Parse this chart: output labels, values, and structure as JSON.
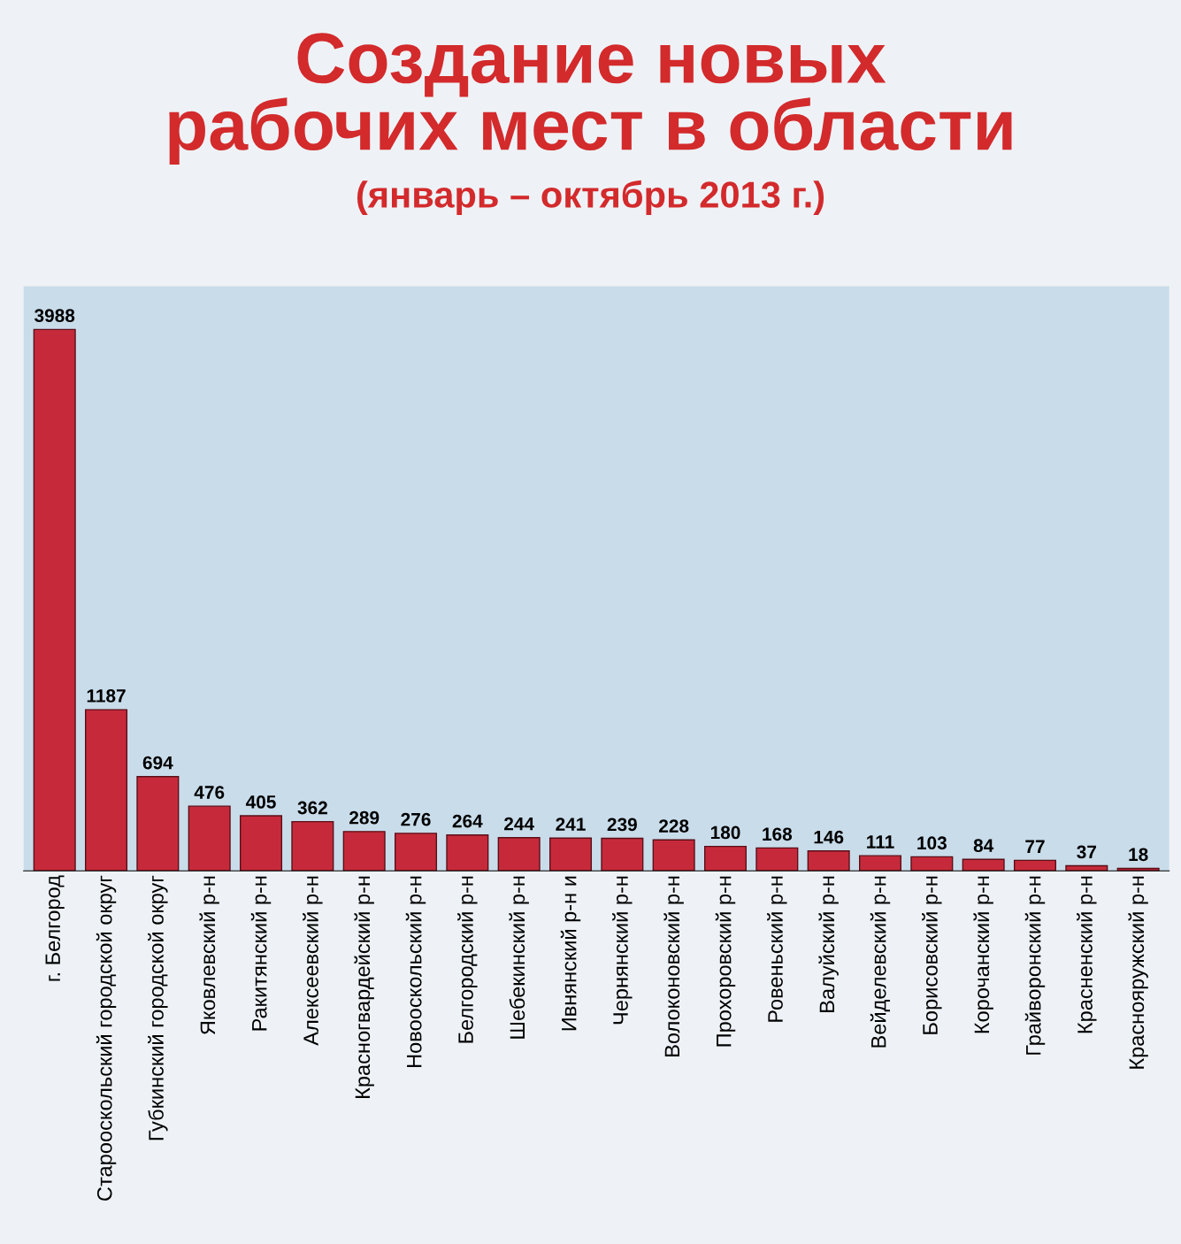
{
  "chart_data": {
    "type": "bar",
    "title": "Создание новых\nрабочих мест в области",
    "subtitle": "(январь – октябрь 2013 г.)",
    "categories": [
      "г. Белгород",
      "Старооскольский городской округ",
      "Губкинский городской округ",
      "Яковлевский р-н",
      "Ракитянский р-н",
      "Алексеевский р-н",
      "Красногвардейский р-н",
      "Новооскольский р-н",
      "Белгородский р-н",
      "Шебекинский р-н",
      "Ивнянский р-н и",
      "Чернянский р-н",
      "Волоконовский р-н",
      "Прохоровский р-н",
      "Ровеньский р-н",
      "Валуйский р-н",
      "Вейделевский р-н",
      "Борисовский р-н",
      "Корочанский р-н",
      "Грайворонский р-н",
      "Красненский р-н",
      "Краснояружский р-н"
    ],
    "values": [
      3988,
      1187,
      694,
      476,
      405,
      362,
      289,
      276,
      264,
      244,
      241,
      239,
      228,
      180,
      168,
      146,
      111,
      103,
      84,
      77,
      37,
      18
    ],
    "color": "#c62a3a",
    "data_labels": true,
    "grid": false,
    "legend": false
  }
}
